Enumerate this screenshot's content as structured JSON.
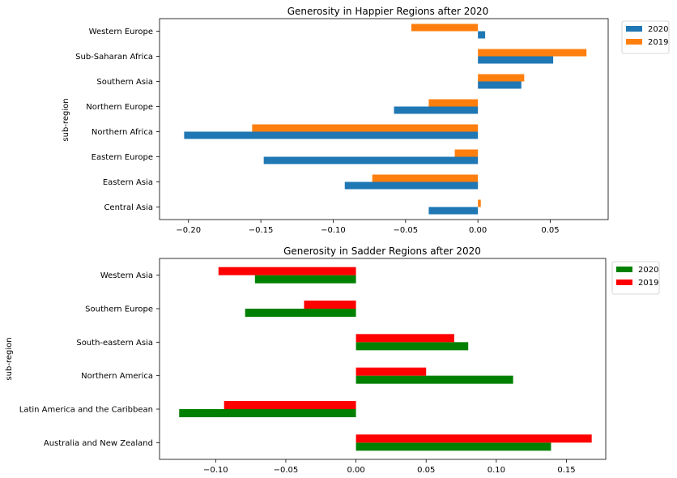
{
  "chart_data": [
    {
      "type": "bar",
      "orientation": "horizontal",
      "title": "Generosity in Happier Regions after 2020",
      "xlabel": "",
      "ylabel": "sub-region",
      "categories": [
        "Central Asia",
        "Eastern Asia",
        "Eastern Europe",
        "Northern Africa",
        "Northern Europe",
        "Southern Asia",
        "Sub-Saharan Africa",
        "Western Europe"
      ],
      "series": [
        {
          "name": "2020",
          "color": "#1f77b4",
          "values": [
            -0.034,
            -0.092,
            -0.148,
            -0.203,
            -0.058,
            0.03,
            0.052,
            0.005
          ]
        },
        {
          "name": "2019",
          "color": "#ff7f0e",
          "values": [
            0.002,
            -0.073,
            -0.016,
            -0.156,
            -0.034,
            0.032,
            0.075,
            -0.046
          ]
        }
      ],
      "xlim": [
        -0.22,
        0.09
      ],
      "xticks": [
        "−0.20",
        "−0.15",
        "−0.10",
        "−0.05",
        "0.00",
        "0.05"
      ],
      "xtick_values": [
        -0.2,
        -0.15,
        -0.1,
        -0.05,
        0.0,
        0.05
      ],
      "legend": "outside-top-right",
      "grid": false
    },
    {
      "type": "bar",
      "orientation": "horizontal",
      "title": "Generosity in Sadder Regions after 2020",
      "xlabel": "",
      "ylabel": "sub-region",
      "categories": [
        "Australia and New Zealand",
        "Latin America and the Caribbean",
        "Northern America",
        "South-eastern Asia",
        "Southern Europe",
        "Western Asia"
      ],
      "series": [
        {
          "name": "2020",
          "color": "#008000",
          "values": [
            0.139,
            -0.126,
            0.112,
            0.08,
            -0.079,
            -0.072
          ]
        },
        {
          "name": "2019",
          "color": "#ff0000",
          "values": [
            0.168,
            -0.094,
            0.05,
            0.07,
            -0.037,
            -0.098
          ]
        }
      ],
      "xlim": [
        -0.14,
        0.178
      ],
      "xticks": [
        "−0.10",
        "−0.05",
        "0.00",
        "0.05",
        "0.10",
        "0.15"
      ],
      "xtick_values": [
        -0.1,
        -0.05,
        0.0,
        0.05,
        0.1,
        0.15
      ],
      "legend": "outside-top-right",
      "grid": false
    }
  ]
}
